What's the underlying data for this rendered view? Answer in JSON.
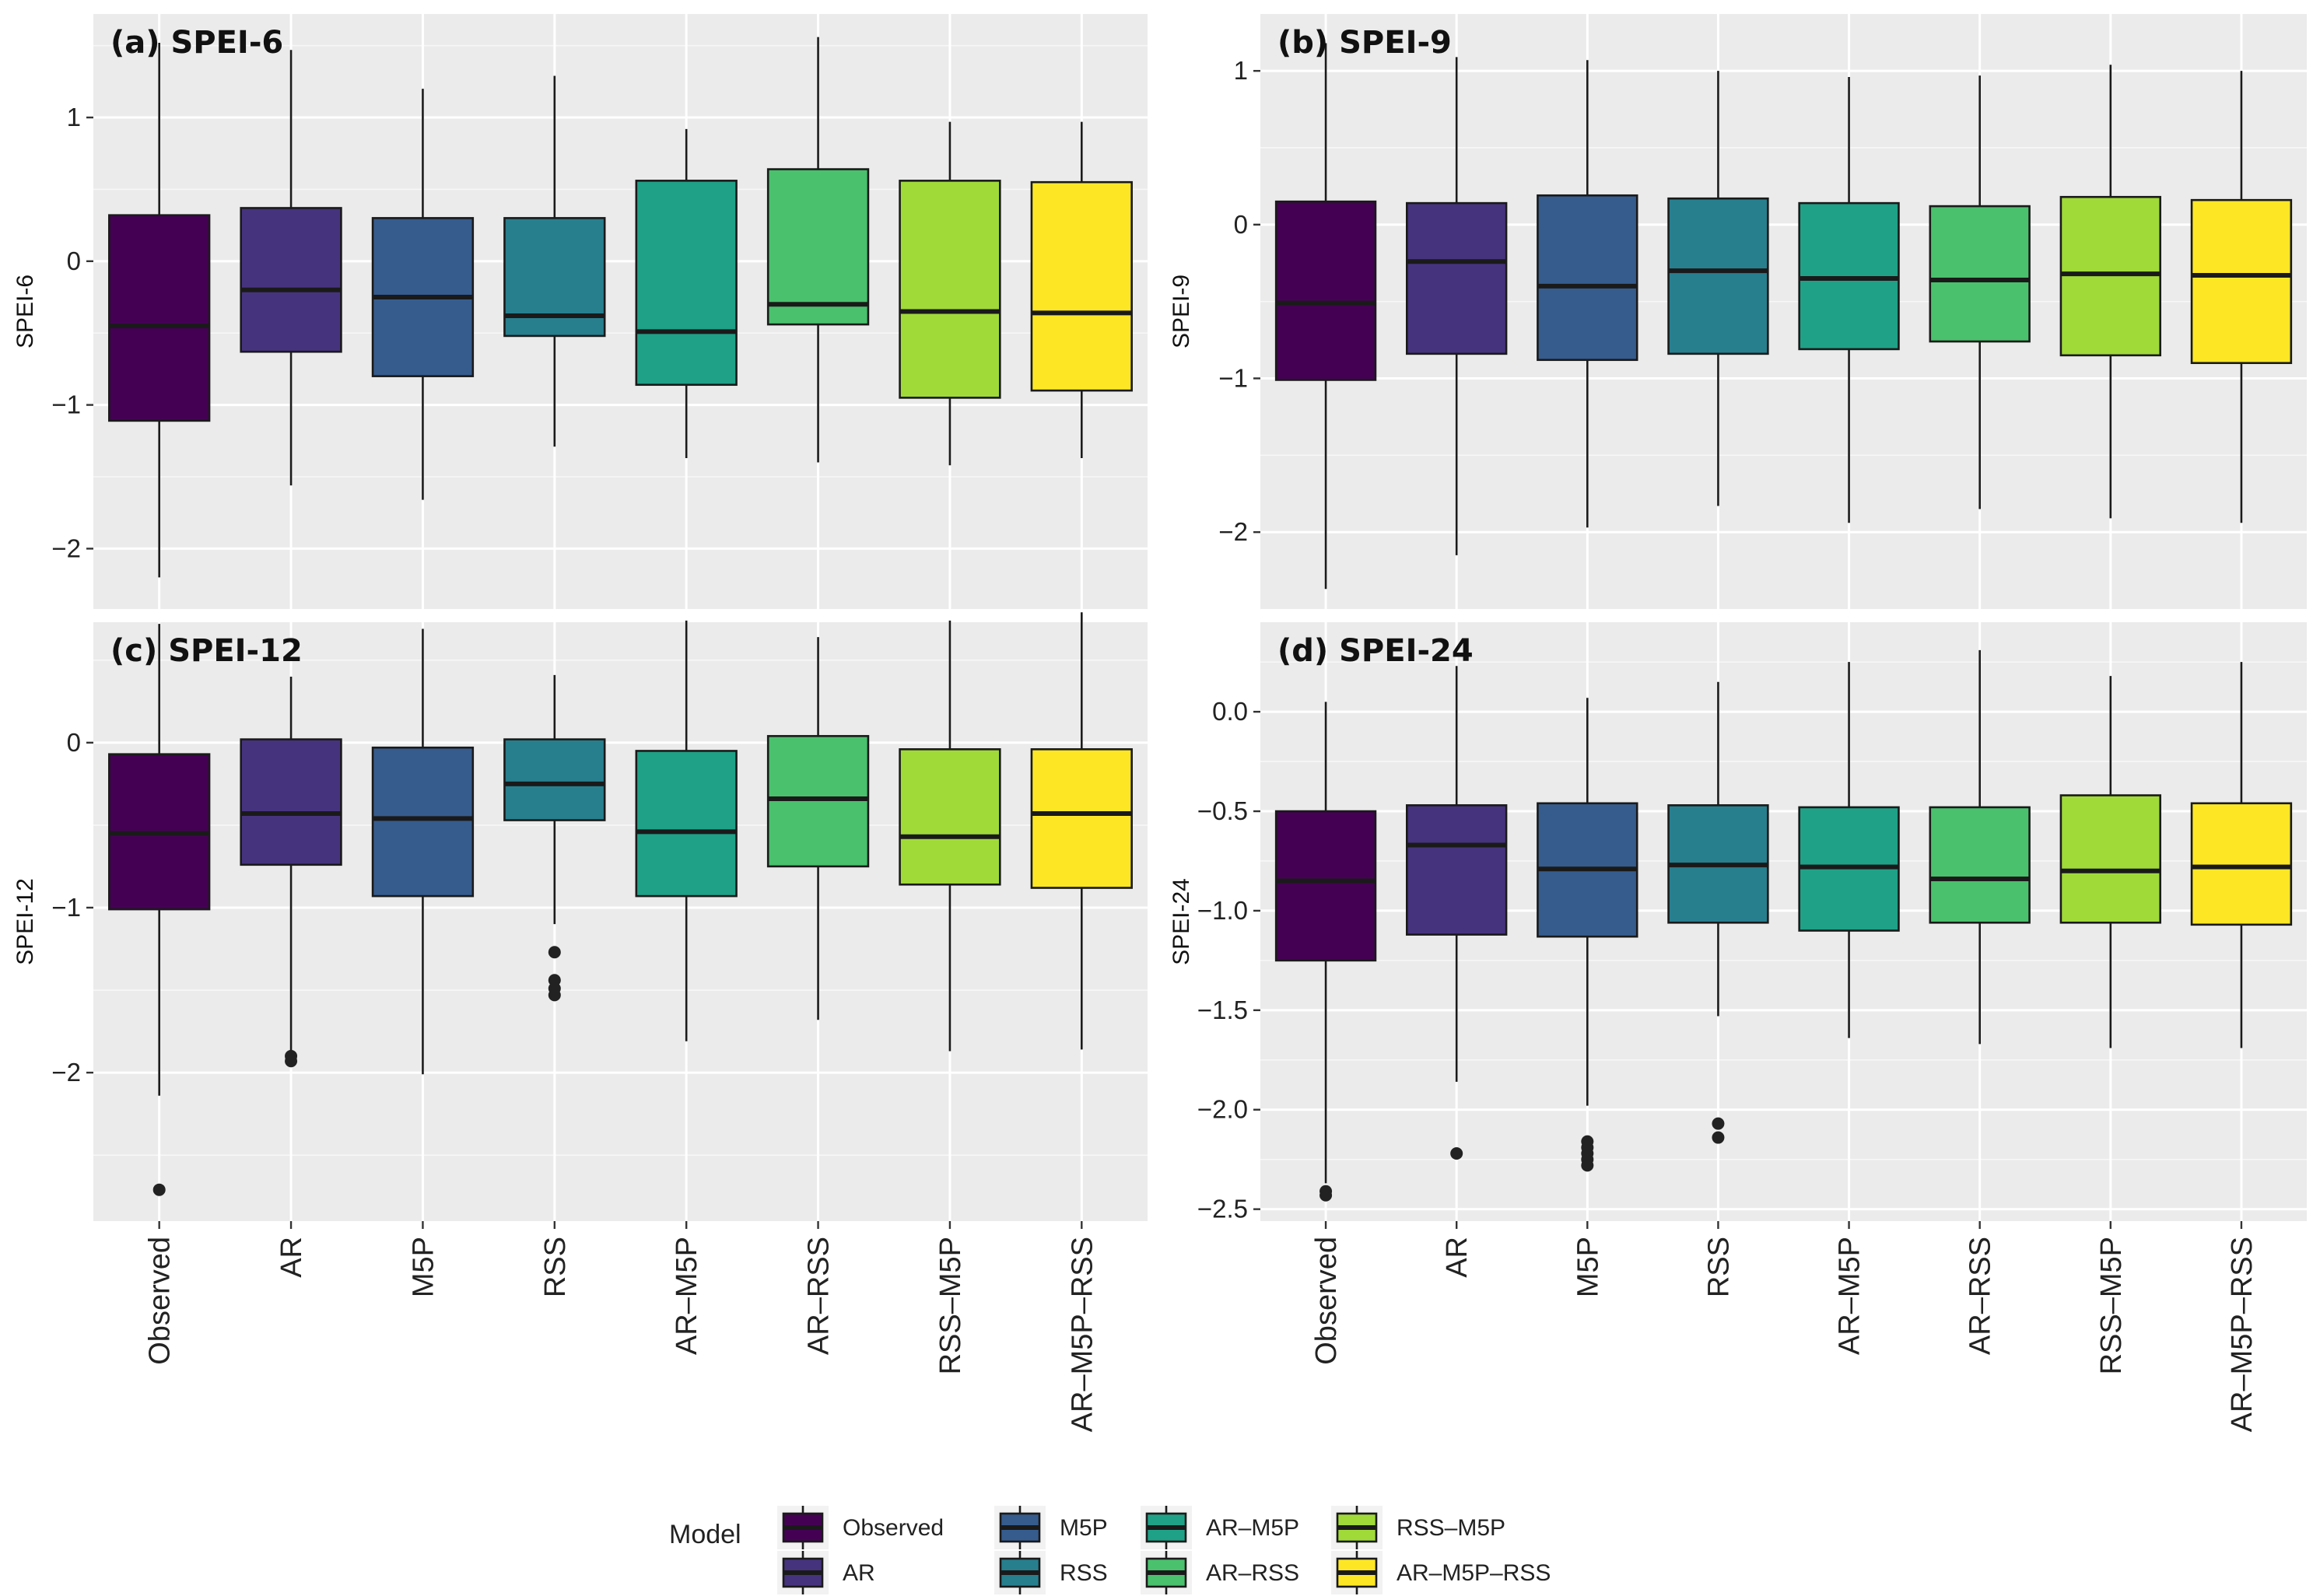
{
  "categories": [
    "Observed",
    "AR",
    "M5P",
    "RSS",
    "AR–M5P",
    "AR–RSS",
    "RSS–M5P",
    "AR–M5P–RSS"
  ],
  "colors": [
    "#440154",
    "#46337e",
    "#365c8d",
    "#277f8e",
    "#1fa187",
    "#4ac16d",
    "#a0da39",
    "#fde725"
  ],
  "legend": {
    "title": "Model",
    "items": [
      "Observed",
      "AR",
      "M5P",
      "RSS",
      "AR–M5P",
      "AR–RSS",
      "RSS–M5P",
      "AR–M5P–RSS"
    ]
  },
  "chart_data": [
    {
      "type": "boxplot",
      "title": "(a) SPEI-6",
      "ylabel": "SPEI-6",
      "ylim": [
        -2.42,
        1.72
      ],
      "yticks": [
        1,
        0,
        -1,
        -2
      ],
      "ytick_labels": [
        "1",
        "0",
        "−1",
        "−2"
      ],
      "show_xticks": false,
      "boxes": [
        {
          "min": -2.2,
          "q1": -1.11,
          "median": -0.45,
          "q3": 0.32,
          "max": 1.52,
          "outliers": []
        },
        {
          "min": -1.56,
          "q1": -0.63,
          "median": -0.2,
          "q3": 0.37,
          "max": 1.47,
          "outliers": []
        },
        {
          "min": -1.66,
          "q1": -0.8,
          "median": -0.25,
          "q3": 0.3,
          "max": 1.2,
          "outliers": []
        },
        {
          "min": -1.29,
          "q1": -0.52,
          "median": -0.38,
          "q3": 0.3,
          "max": 1.29,
          "outliers": []
        },
        {
          "min": -1.37,
          "q1": -0.86,
          "median": -0.49,
          "q3": 0.56,
          "max": 0.92,
          "outliers": []
        },
        {
          "min": -1.4,
          "q1": -0.44,
          "median": -0.3,
          "q3": 0.64,
          "max": 1.56,
          "outliers": []
        },
        {
          "min": -1.42,
          "q1": -0.95,
          "median": -0.35,
          "q3": 0.56,
          "max": 0.97,
          "outliers": []
        },
        {
          "min": -1.37,
          "q1": -0.9,
          "median": -0.36,
          "q3": 0.55,
          "max": 0.97,
          "outliers": []
        }
      ]
    },
    {
      "type": "boxplot",
      "title": "(b) SPEI-9",
      "ylabel": "SPEI-9",
      "ylim": [
        -2.5,
        1.37
      ],
      "yticks": [
        1,
        0,
        -1,
        -2
      ],
      "ytick_labels": [
        "1",
        "0",
        "−1",
        "−2"
      ],
      "show_xticks": false,
      "boxes": [
        {
          "min": -2.37,
          "q1": -1.01,
          "median": -0.51,
          "q3": 0.15,
          "max": 1.18,
          "outliers": []
        },
        {
          "min": -2.15,
          "q1": -0.84,
          "median": -0.24,
          "q3": 0.14,
          "max": 1.09,
          "outliers": []
        },
        {
          "min": -1.97,
          "q1": -0.88,
          "median": -0.4,
          "q3": 0.19,
          "max": 1.07,
          "outliers": []
        },
        {
          "min": -1.83,
          "q1": -0.84,
          "median": -0.3,
          "q3": 0.17,
          "max": 1.0,
          "outliers": []
        },
        {
          "min": -1.94,
          "q1": -0.81,
          "median": -0.35,
          "q3": 0.14,
          "max": 0.96,
          "outliers": []
        },
        {
          "min": -1.85,
          "q1": -0.76,
          "median": -0.36,
          "q3": 0.12,
          "max": 0.97,
          "outliers": []
        },
        {
          "min": -1.91,
          "q1": -0.85,
          "median": -0.32,
          "q3": 0.18,
          "max": 1.04,
          "outliers": []
        },
        {
          "min": -1.94,
          "q1": -0.9,
          "median": -0.33,
          "q3": 0.16,
          "max": 1.0,
          "outliers": []
        }
      ]
    },
    {
      "type": "boxplot",
      "title": "(c) SPEI-12",
      "ylabel": "SPEI-12",
      "ylim": [
        -2.9,
        0.73
      ],
      "yticks": [
        0,
        -1,
        -2
      ],
      "ytick_labels": [
        "0",
        "−1",
        "−2"
      ],
      "show_xticks": true,
      "boxes": [
        {
          "min": -2.14,
          "q1": -1.01,
          "median": -0.55,
          "q3": -0.07,
          "max": 0.72,
          "outliers": [
            -2.71
          ]
        },
        {
          "min": -1.88,
          "q1": -0.74,
          "median": -0.43,
          "q3": 0.02,
          "max": 0.4,
          "outliers": [
            -1.9,
            -1.93
          ]
        },
        {
          "min": -2.01,
          "q1": -0.93,
          "median": -0.46,
          "q3": -0.03,
          "max": 0.69,
          "outliers": []
        },
        {
          "min": -1.1,
          "q1": -0.47,
          "median": -0.25,
          "q3": 0.02,
          "max": 0.41,
          "outliers": [
            -1.27,
            -1.44,
            -1.49,
            -1.53
          ]
        },
        {
          "min": -1.81,
          "q1": -0.93,
          "median": -0.54,
          "q3": -0.05,
          "max": 0.74,
          "outliers": []
        },
        {
          "min": -1.68,
          "q1": -0.75,
          "median": -0.34,
          "q3": 0.04,
          "max": 0.64,
          "outliers": []
        },
        {
          "min": -1.87,
          "q1": -0.86,
          "median": -0.57,
          "q3": -0.04,
          "max": 0.74,
          "outliers": []
        },
        {
          "min": -1.86,
          "q1": -0.88,
          "median": -0.43,
          "q3": -0.04,
          "max": 0.79,
          "outliers": []
        }
      ]
    },
    {
      "type": "boxplot",
      "title": "(d) SPEI-24",
      "ylabel": "SPEI-24",
      "ylim": [
        -2.56,
        0.45
      ],
      "yticks": [
        0.0,
        -0.5,
        -1.0,
        -1.5,
        -2.0,
        -2.5
      ],
      "ytick_labels": [
        "0.0",
        "−0.5",
        "−1.0",
        "−1.5",
        "−2.0",
        "−2.5"
      ],
      "show_xticks": true,
      "boxes": [
        {
          "min": -2.37,
          "q1": -1.25,
          "median": -0.85,
          "q3": -0.5,
          "max": 0.05,
          "outliers": [
            -2.41,
            -2.43
          ]
        },
        {
          "min": -1.86,
          "q1": -1.12,
          "median": -0.67,
          "q3": -0.47,
          "max": 0.23,
          "outliers": [
            -2.22
          ]
        },
        {
          "min": -1.98,
          "q1": -1.13,
          "median": -0.79,
          "q3": -0.46,
          "max": 0.07,
          "outliers": [
            -2.16,
            -2.19,
            -2.22,
            -2.25,
            -2.28
          ]
        },
        {
          "min": -1.53,
          "q1": -1.06,
          "median": -0.77,
          "q3": -0.47,
          "max": 0.15,
          "outliers": [
            -2.07,
            -2.14
          ]
        },
        {
          "min": -1.64,
          "q1": -1.1,
          "median": -0.78,
          "q3": -0.48,
          "max": 0.25,
          "outliers": []
        },
        {
          "min": -1.67,
          "q1": -1.06,
          "median": -0.84,
          "q3": -0.48,
          "max": 0.31,
          "outliers": []
        },
        {
          "min": -1.69,
          "q1": -1.06,
          "median": -0.8,
          "q3": -0.42,
          "max": 0.18,
          "outliers": []
        },
        {
          "min": -1.69,
          "q1": -1.07,
          "median": -0.78,
          "q3": -0.46,
          "max": 0.25,
          "outliers": []
        }
      ]
    }
  ]
}
